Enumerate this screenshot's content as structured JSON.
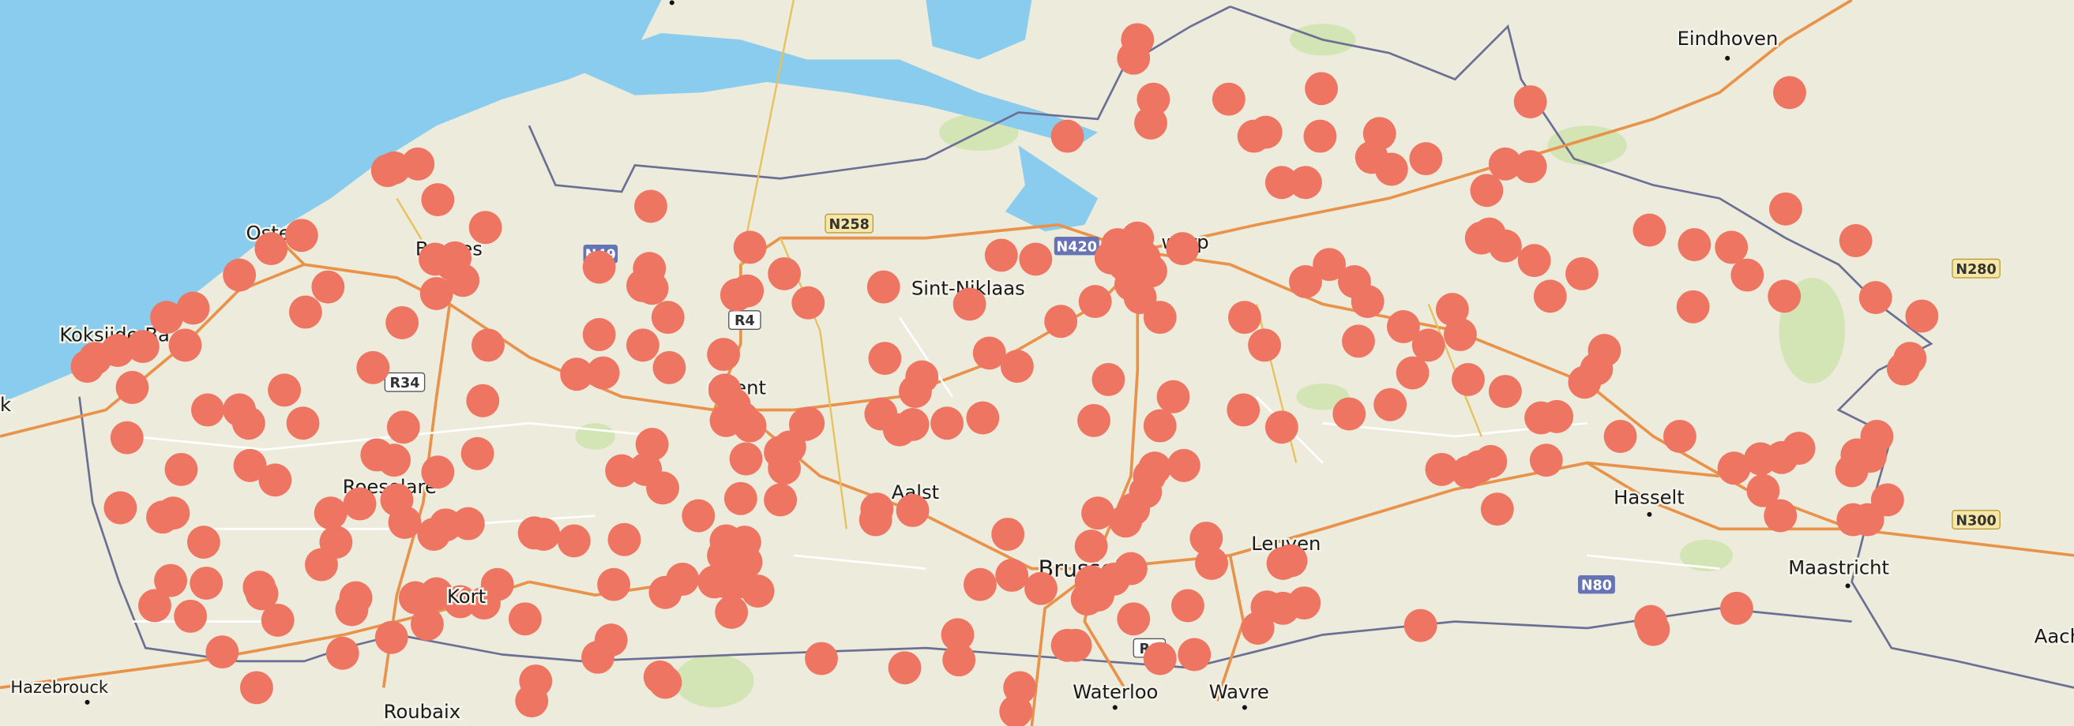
{
  "map": {
    "colors": {
      "marker": "#ee7561",
      "water": "#8accee",
      "land": "#ecebdc",
      "motorway": "#e9924a",
      "border": "#6b6f93",
      "shield_blue": "#6673b5"
    },
    "place_labels": {
      "eindhoven": "Eindhoven",
      "oostende": "Oste",
      "bruges": "Bruges",
      "sint_niklaas": "Sint-Niklaas",
      "antwerp": "werp",
      "koksijde": "Koksijde-Ba",
      "ghent": "Ghent",
      "roeselare": "Roeselare",
      "aalst": "Aalst",
      "brussels": "Brussels",
      "leuven": "Leuven",
      "hasselt": "Hasselt",
      "maastricht": "Maastricht",
      "aachen": "Aach",
      "hazebrouck": "Hazebrouck",
      "roubaix": "Roubaix",
      "waterloo": "Waterloo",
      "wavre": "Wavre",
      "kortrijk": "Kort",
      "dunkirk": "k"
    },
    "road_shields": {
      "n49": "N49",
      "n258": "N258",
      "n420": "N420",
      "r4": "R4",
      "r34": "R34",
      "n80": "N80",
      "n280": "N280",
      "n300": "N300",
      "r0": "R0"
    },
    "marker_icon": "circle-marker"
  }
}
